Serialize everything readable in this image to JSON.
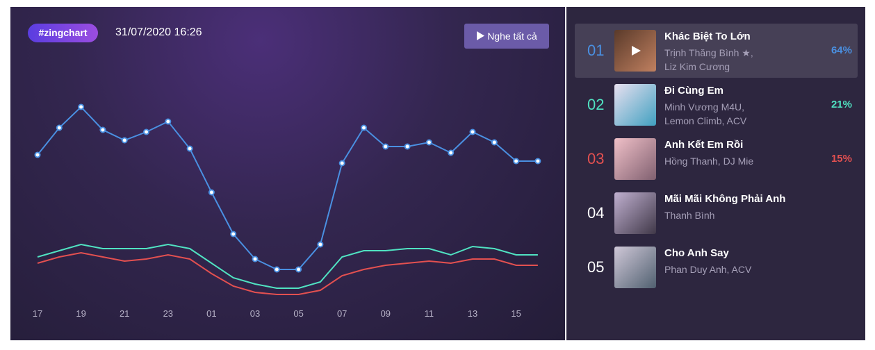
{
  "header": {
    "tag": "#zingchart",
    "datetime": "31/07/2020 16:26",
    "play_all": "Nghe tất cả"
  },
  "chart": {
    "type": "line",
    "ylim": [
      0,
      100
    ],
    "x": [
      "17",
      null,
      "19",
      null,
      "21",
      null,
      "23",
      null,
      "01",
      null,
      "03",
      null,
      "05",
      null,
      "07",
      null,
      "09",
      null,
      "11",
      null,
      "13",
      null,
      "15",
      null
    ],
    "series": [
      {
        "color": "#4a90e2",
        "markers": true,
        "values": [
          69,
          82,
          92,
          81,
          76,
          80,
          85,
          72,
          51,
          31,
          19,
          14,
          14,
          26,
          65,
          82,
          73,
          73,
          75,
          70,
          80,
          75,
          66,
          66
        ]
      },
      {
        "color": "#50e3c2",
        "markers": false,
        "values": [
          20,
          23,
          26,
          24,
          24,
          24,
          26,
          24,
          17,
          10,
          7,
          5,
          5,
          8,
          20,
          23,
          23,
          24,
          24,
          21,
          25,
          24,
          21,
          21
        ]
      },
      {
        "color": "#e35050",
        "markers": false,
        "values": [
          17,
          20,
          22,
          20,
          18,
          19,
          21,
          19,
          12,
          6,
          3,
          2,
          2,
          4,
          11,
          14,
          16,
          17,
          18,
          17,
          19,
          19,
          16,
          16
        ]
      }
    ]
  },
  "ranking": {
    "items": [
      {
        "rank": "01",
        "title": "Khác Biệt To Lớn",
        "artists": "Trịnh Thăng Bình ★, Liz Kim Cương",
        "percent": "64%",
        "color": "#4a90e2"
      },
      {
        "rank": "02",
        "title": "Đi Cùng Em",
        "artists": "Minh Vương M4U, Lemon Climb, ACV",
        "percent": "21%",
        "color": "#50e3c2"
      },
      {
        "rank": "03",
        "title": "Anh Kết Em Rồi",
        "artists": "Hồng Thanh, DJ Mie",
        "percent": "15%",
        "color": "#e35050"
      },
      {
        "rank": "04",
        "title": "Mãi Mãi Không Phải Anh",
        "artists": "Thanh Bình",
        "color": "#ffffff"
      },
      {
        "rank": "05",
        "title": "Cho Anh Say",
        "artists": "Phan Duy Anh, ACV",
        "color": "#ffffff"
      }
    ]
  }
}
